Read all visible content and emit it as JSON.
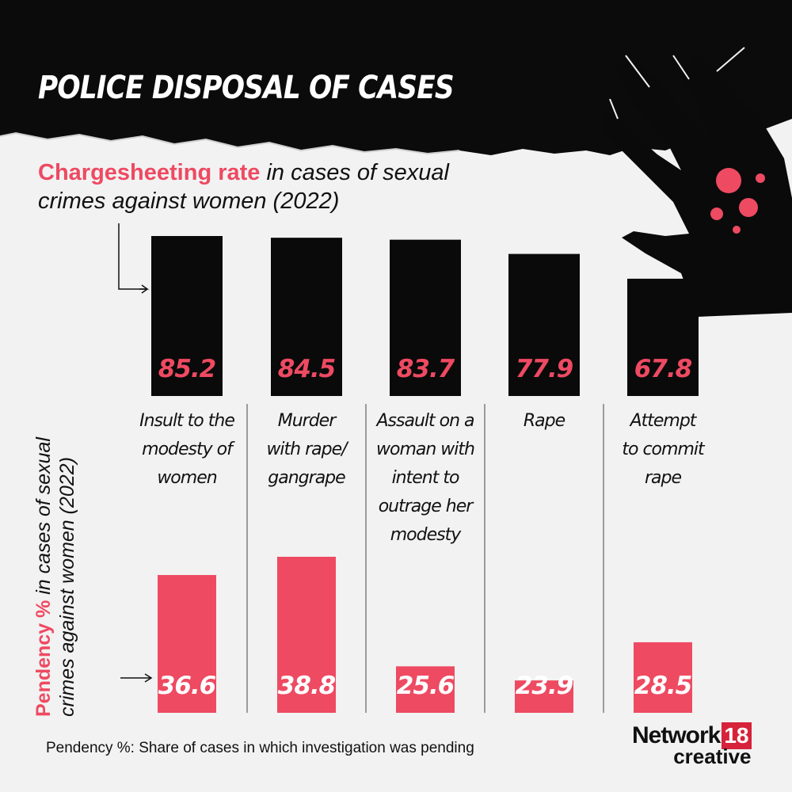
{
  "title": "POLICE DISPOSAL OF CASES",
  "chargesheet_heading": {
    "highlight": "Chargesheeting rate",
    "rest": " in cases of sexual crimes against women (2022)"
  },
  "pendency_heading": {
    "highlight": "Pendency %",
    "rest": " in cases of sexual crimes against women (2022)"
  },
  "footnote": "Pendency %: Share of cases in which investigation was pending",
  "brand": {
    "name": "Network",
    "number": "18",
    "sub": "creative"
  },
  "colors": {
    "accent": "#ee4a62",
    "bar_dark": "#0a0a0a",
    "background": "#f2f2f2",
    "brand_red": "#d6223a"
  },
  "icons": [
    "hand-splatter-illustration"
  ],
  "chart_data": [
    {
      "type": "bar",
      "title": "Chargesheeting rate in cases of sexual crimes against women (2022)",
      "categories": [
        "Insult to the modesty of women",
        "Murder with rape/ gangrape",
        "Assault on a woman with intent to outrage her modesty",
        "Rape",
        "Attempt to commit rape"
      ],
      "category_lines": [
        "Insult to the\nmodesty of\nwomen",
        "Murder\nwith rape/\ngangrape",
        "Assault on a\nwoman with\nintent to\noutrage her\nmodesty",
        "Rape",
        "Attempt\nto commit\nrape"
      ],
      "values": [
        85.2,
        84.5,
        83.7,
        77.9,
        67.8
      ],
      "value_labels": [
        "85.2",
        "84.5",
        "83.7",
        "77.9",
        "67.8"
      ],
      "color": "#0a0a0a",
      "label_color": "#ee4a62"
    },
    {
      "type": "bar",
      "title": "Pendency % in cases of sexual crimes against women (2022)",
      "categories": [
        "Insult to the modesty of women",
        "Murder with rape/ gangrape",
        "Assault on a woman with intent to outrage her modesty",
        "Rape",
        "Attempt to commit rape"
      ],
      "values": [
        36.6,
        38.8,
        25.6,
        23.9,
        28.5
      ],
      "value_labels": [
        "36.6",
        "38.8",
        "25.6",
        "23.9",
        "28.5"
      ],
      "color": "#ee4a62",
      "label_color": "#ffffff"
    }
  ]
}
